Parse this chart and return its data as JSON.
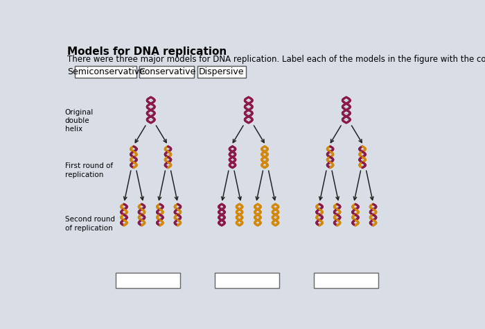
{
  "title": "Models for DNA replication",
  "subtitle": "There were three major models for DNA replication. Label each of the models in the figure with the correct name.",
  "labels": [
    "Semiconservative",
    "Conservative",
    "Dispersive"
  ],
  "row_labels": [
    "Original\ndouble\nhelix",
    "First round of\nreplication",
    "Second round\nof replication"
  ],
  "background_color": "#d8dde6",
  "box_fill": "#ffffff",
  "title_fontsize": 11,
  "subtitle_fontsize": 8.5,
  "label_fontsize": 9,
  "row_label_fontsize": 7.5,
  "color_original": "#8B1A4A",
  "color_new": "#D4880A"
}
